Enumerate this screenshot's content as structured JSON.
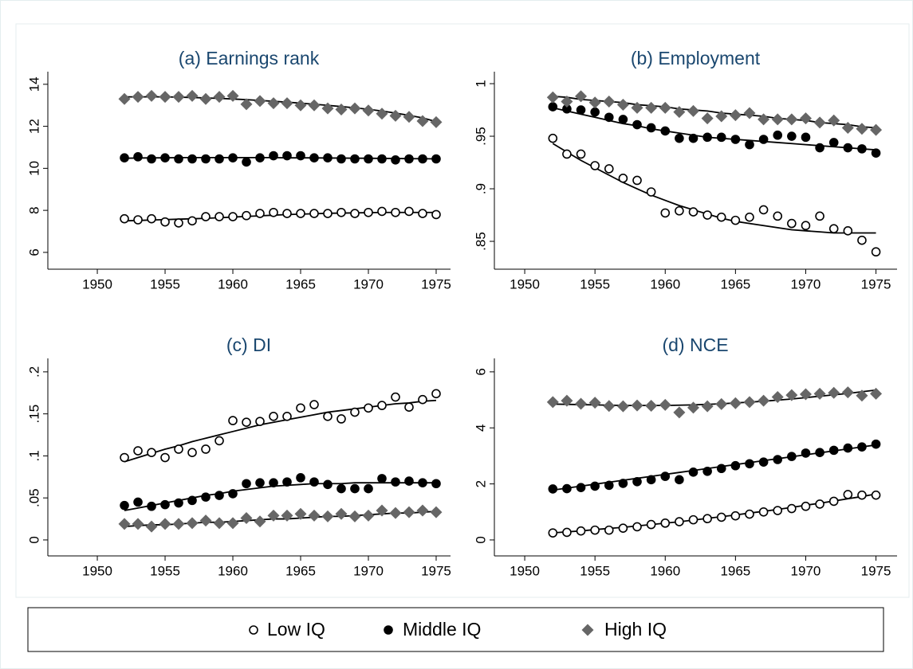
{
  "chart_data": [
    {
      "type": "scatter",
      "title": "(a) Earnings rank",
      "x": [
        1952,
        1953,
        1954,
        1955,
        1956,
        1957,
        1958,
        1959,
        1960,
        1961,
        1962,
        1963,
        1964,
        1965,
        1966,
        1967,
        1968,
        1969,
        1970,
        1971,
        1972,
        1973,
        1974,
        1975
      ],
      "xlim": [
        1946.35,
        1976.06
      ],
      "xticks": [
        1950,
        1955,
        1960,
        1965,
        1970,
        1975
      ],
      "ylim": [
        5.2,
        14.6
      ],
      "yticks": [
        6,
        8,
        10,
        12,
        14
      ],
      "series": [
        {
          "color": "#000000",
          "marker": "hollow-circle",
          "values": [
            7.6,
            7.55,
            7.6,
            7.45,
            7.4,
            7.5,
            7.7,
            7.7,
            7.7,
            7.75,
            7.85,
            7.9,
            7.85,
            7.85,
            7.85,
            7.85,
            7.9,
            7.85,
            7.9,
            7.95,
            7.9,
            7.95,
            7.85,
            7.8
          ],
          "fit": [
            7.5,
            7.52,
            7.54,
            7.56,
            7.58,
            7.6,
            7.62,
            7.65,
            7.68,
            7.71,
            7.74,
            7.77,
            7.8,
            7.82,
            7.84,
            7.86,
            7.87,
            7.88,
            7.89,
            7.9,
            7.9,
            7.9,
            7.9,
            7.9
          ]
        },
        {
          "color": "#000000",
          "marker": "circle",
          "values": [
            10.5,
            10.55,
            10.45,
            10.5,
            10.45,
            10.45,
            10.45,
            10.45,
            10.5,
            10.3,
            10.5,
            10.6,
            10.6,
            10.6,
            10.5,
            10.5,
            10.45,
            10.45,
            10.45,
            10.45,
            10.4,
            10.45,
            10.45,
            10.45
          ],
          "fit": [
            10.48,
            10.49,
            10.5,
            10.5,
            10.51,
            10.51,
            10.51,
            10.51,
            10.51,
            10.51,
            10.51,
            10.51,
            10.5,
            10.5,
            10.5,
            10.49,
            10.49,
            10.48,
            10.48,
            10.47,
            10.47,
            10.46,
            10.46,
            10.45
          ]
        },
        {
          "color": "#666666",
          "marker": "diamond",
          "values": [
            13.3,
            13.4,
            13.45,
            13.4,
            13.4,
            13.45,
            13.3,
            13.4,
            13.45,
            13.05,
            13.2,
            13.1,
            13.1,
            13.0,
            13.0,
            12.85,
            12.8,
            12.85,
            12.75,
            12.6,
            12.5,
            12.45,
            12.25,
            12.2
          ],
          "fit": [
            13.4,
            13.4,
            13.4,
            13.4,
            13.39,
            13.37,
            13.35,
            13.33,
            13.3,
            13.27,
            13.23,
            13.19,
            13.15,
            13.1,
            13.05,
            13.0,
            12.94,
            12.88,
            12.81,
            12.73,
            12.63,
            12.52,
            12.4,
            12.22
          ]
        }
      ]
    },
    {
      "type": "scatter",
      "title": "(b) Employment",
      "x": [
        1952,
        1953,
        1954,
        1955,
        1956,
        1957,
        1958,
        1959,
        1960,
        1961,
        1962,
        1963,
        1964,
        1965,
        1966,
        1967,
        1968,
        1969,
        1970,
        1971,
        1972,
        1973,
        1974,
        1975
      ],
      "xlim": [
        1947.84,
        1976.5
      ],
      "xticks": [
        1950,
        1955,
        1960,
        1965,
        1970,
        1975
      ],
      "ylim": [
        0.8235,
        1.0114
      ],
      "yticks": [
        {
          "value": 0.85,
          "label": ".85"
        },
        {
          "value": 0.9,
          "label": ".9"
        },
        {
          "value": 0.95,
          "label": ".95"
        },
        1
      ],
      "series": [
        {
          "color": "#000000",
          "marker": "hollow-circle",
          "values": [
            0.948,
            0.933,
            0.933,
            0.922,
            0.919,
            0.91,
            0.908,
            0.897,
            0.877,
            0.879,
            0.878,
            0.875,
            0.873,
            0.87,
            0.873,
            0.88,
            0.874,
            0.867,
            0.865,
            0.874,
            0.862,
            0.86,
            0.851,
            0.84
          ],
          "fit": [
            0.943,
            0.935,
            0.927,
            0.92,
            0.913,
            0.906,
            0.9,
            0.894,
            0.889,
            0.884,
            0.88,
            0.876,
            0.872,
            0.869,
            0.867,
            0.865,
            0.863,
            0.861,
            0.86,
            0.859,
            0.858,
            0.858,
            0.858,
            0.858
          ]
        },
        {
          "color": "#000000",
          "marker": "circle",
          "values": [
            0.978,
            0.976,
            0.975,
            0.973,
            0.968,
            0.966,
            0.961,
            0.958,
            0.955,
            0.948,
            0.948,
            0.949,
            0.949,
            0.947,
            0.942,
            0.947,
            0.951,
            0.95,
            0.949,
            0.939,
            0.944,
            0.939,
            0.938,
            0.934
          ],
          "fit": [
            0.977,
            0.974,
            0.971,
            0.968,
            0.965,
            0.962,
            0.96,
            0.957,
            0.955,
            0.953,
            0.951,
            0.949,
            0.948,
            0.947,
            0.946,
            0.945,
            0.944,
            0.943,
            0.942,
            0.941,
            0.94,
            0.939,
            0.938,
            0.937
          ]
        },
        {
          "color": "#666666",
          "marker": "diamond",
          "values": [
            0.987,
            0.983,
            0.988,
            0.982,
            0.983,
            0.98,
            0.977,
            0.977,
            0.977,
            0.973,
            0.974,
            0.967,
            0.969,
            0.97,
            0.972,
            0.966,
            0.966,
            0.966,
            0.967,
            0.963,
            0.965,
            0.958,
            0.957,
            0.956
          ],
          "fit": [
            0.988,
            0.987,
            0.985,
            0.984,
            0.983,
            0.982,
            0.98,
            0.979,
            0.978,
            0.976,
            0.975,
            0.974,
            0.972,
            0.971,
            0.97,
            0.969,
            0.967,
            0.966,
            0.965,
            0.963,
            0.962,
            0.961,
            0.959,
            0.958
          ]
        }
      ]
    },
    {
      "type": "scatter",
      "title": "(c) DI",
      "x": [
        1952,
        1953,
        1954,
        1955,
        1956,
        1957,
        1958,
        1959,
        1960,
        1961,
        1962,
        1963,
        1964,
        1965,
        1966,
        1967,
        1968,
        1969,
        1970,
        1971,
        1972,
        1973,
        1974,
        1975
      ],
      "xlim": [
        1946.35,
        1976.06
      ],
      "xticks": [
        1950,
        1955,
        1960,
        1965,
        1970,
        1975
      ],
      "ylim": [
        -0.019,
        0.216
      ],
      "yticks": [
        0,
        {
          "value": 0.05,
          "label": ".05"
        },
        {
          "value": 0.1,
          "label": ".1"
        },
        {
          "value": 0.15,
          "label": ".15"
        },
        {
          "value": 0.2,
          "label": ".2"
        }
      ],
      "series": [
        {
          "color": "#000000",
          "marker": "hollow-circle",
          "values": [
            0.098,
            0.106,
            0.104,
            0.098,
            0.108,
            0.104,
            0.108,
            0.118,
            0.142,
            0.14,
            0.141,
            0.147,
            0.147,
            0.157,
            0.161,
            0.147,
            0.144,
            0.152,
            0.157,
            0.16,
            0.17,
            0.158,
            0.167,
            0.174
          ],
          "fit": [
            0.093,
            0.098,
            0.103,
            0.108,
            0.112,
            0.117,
            0.121,
            0.125,
            0.129,
            0.133,
            0.137,
            0.14,
            0.143,
            0.146,
            0.149,
            0.152,
            0.154,
            0.156,
            0.158,
            0.16,
            0.162,
            0.163,
            0.165,
            0.166
          ]
        },
        {
          "color": "#000000",
          "marker": "circle",
          "values": [
            0.041,
            0.045,
            0.04,
            0.042,
            0.044,
            0.047,
            0.051,
            0.053,
            0.055,
            0.067,
            0.068,
            0.068,
            0.069,
            0.074,
            0.069,
            0.066,
            0.061,
            0.061,
            0.061,
            0.073,
            0.069,
            0.07,
            0.068,
            0.067
          ],
          "fit": [
            0.035,
            0.038,
            0.041,
            0.044,
            0.047,
            0.05,
            0.053,
            0.055,
            0.058,
            0.06,
            0.062,
            0.064,
            0.065,
            0.066,
            0.067,
            0.067,
            0.067,
            0.068,
            0.068,
            0.068,
            0.068,
            0.068,
            0.068,
            0.068
          ]
        },
        {
          "color": "#666666",
          "marker": "diamond",
          "values": [
            0.019,
            0.019,
            0.016,
            0.019,
            0.019,
            0.02,
            0.023,
            0.02,
            0.02,
            0.026,
            0.022,
            0.029,
            0.029,
            0.031,
            0.029,
            0.028,
            0.031,
            0.028,
            0.029,
            0.035,
            0.032,
            0.033,
            0.035,
            0.033
          ],
          "fit": [
            0.016,
            0.017,
            0.018,
            0.018,
            0.019,
            0.02,
            0.021,
            0.021,
            0.022,
            0.023,
            0.024,
            0.025,
            0.025,
            0.026,
            0.027,
            0.028,
            0.028,
            0.029,
            0.03,
            0.031,
            0.032,
            0.032,
            0.033,
            0.034
          ]
        }
      ]
    },
    {
      "type": "scatter",
      "title": "(d) NCE",
      "x": [
        1952,
        1953,
        1954,
        1955,
        1956,
        1957,
        1958,
        1959,
        1960,
        1961,
        1962,
        1963,
        1964,
        1965,
        1966,
        1967,
        1968,
        1969,
        1970,
        1971,
        1972,
        1973,
        1974,
        1975
      ],
      "xlim": [
        1947.84,
        1976.5
      ],
      "xticks": [
        1950,
        1955,
        1960,
        1965,
        1970,
        1975
      ],
      "ylim": [
        -0.57,
        6.48
      ],
      "yticks": [
        0,
        2,
        4,
        6
      ],
      "series": [
        {
          "color": "#000000",
          "marker": "hollow-circle",
          "values": [
            0.25,
            0.27,
            0.32,
            0.35,
            0.35,
            0.42,
            0.47,
            0.55,
            0.6,
            0.65,
            0.72,
            0.76,
            0.81,
            0.86,
            0.92,
            1.0,
            1.05,
            1.12,
            1.2,
            1.28,
            1.38,
            1.62,
            1.6,
            1.6
          ],
          "fit": [
            0.25,
            0.29,
            0.32,
            0.37,
            0.41,
            0.45,
            0.5,
            0.55,
            0.6,
            0.65,
            0.71,
            0.77,
            0.83,
            0.89,
            0.96,
            1.02,
            1.09,
            1.16,
            1.24,
            1.31,
            1.39,
            1.47,
            1.55,
            1.64
          ]
        },
        {
          "color": "#000000",
          "marker": "circle",
          "values": [
            1.82,
            1.83,
            1.87,
            1.92,
            1.95,
            2.02,
            2.08,
            2.15,
            2.27,
            2.15,
            2.42,
            2.45,
            2.55,
            2.65,
            2.72,
            2.78,
            2.87,
            2.98,
            3.1,
            3.12,
            3.2,
            3.28,
            3.32,
            3.42
          ],
          "fit": [
            1.78,
            1.85,
            1.92,
            1.99,
            2.06,
            2.13,
            2.2,
            2.27,
            2.34,
            2.41,
            2.48,
            2.55,
            2.62,
            2.69,
            2.76,
            2.83,
            2.9,
            2.97,
            3.04,
            3.11,
            3.18,
            3.25,
            3.32,
            3.39
          ]
        },
        {
          "color": "#666666",
          "marker": "diamond",
          "values": [
            4.92,
            4.97,
            4.86,
            4.9,
            4.78,
            4.77,
            4.8,
            4.79,
            4.82,
            4.55,
            4.72,
            4.77,
            4.85,
            4.88,
            4.92,
            4.97,
            5.1,
            5.17,
            5.2,
            5.22,
            5.25,
            5.27,
            5.15,
            5.22
          ],
          "fit": [
            4.85,
            4.84,
            4.83,
            4.82,
            4.81,
            4.8,
            4.8,
            4.8,
            4.8,
            4.81,
            4.82,
            4.84,
            4.86,
            4.89,
            4.92,
            4.95,
            4.99,
            5.03,
            5.08,
            5.13,
            5.18,
            5.23,
            5.29,
            5.35
          ]
        }
      ]
    }
  ],
  "legend": [
    {
      "name": "Low IQ",
      "color": "#000000",
      "marker": "hollow-circle"
    },
    {
      "name": "Middle IQ",
      "color": "#000000",
      "marker": "circle"
    },
    {
      "name": "High IQ",
      "color": "#666666",
      "marker": "diamond"
    }
  ]
}
